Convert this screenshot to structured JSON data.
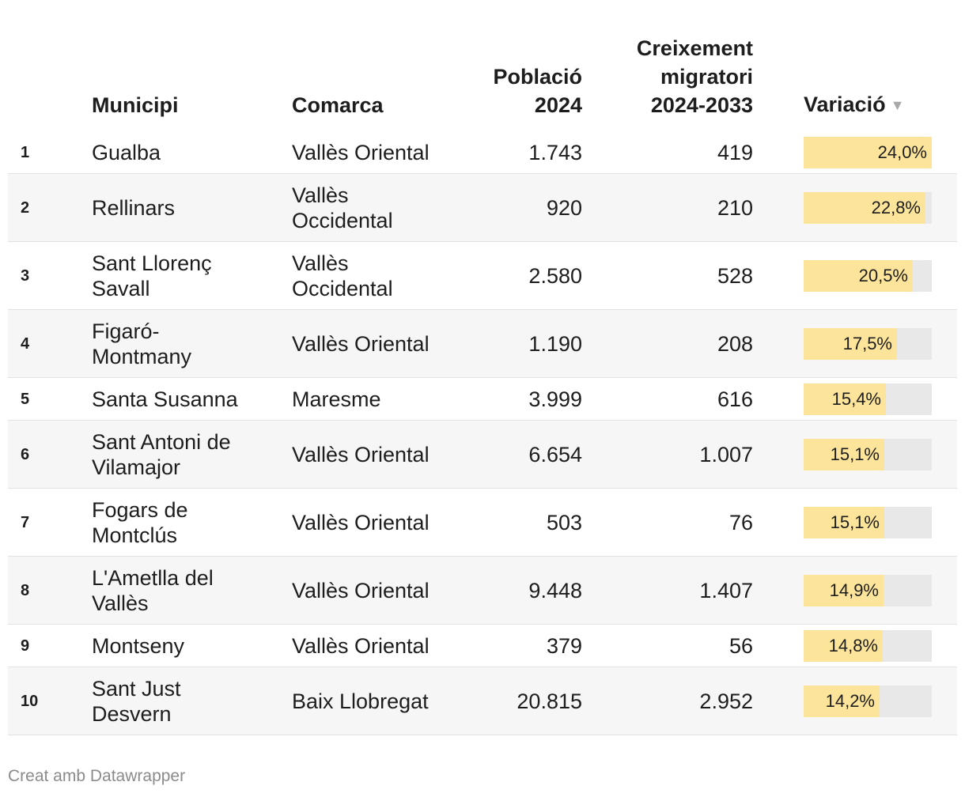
{
  "table": {
    "headers": {
      "municipi": "Municipi",
      "comarca": "Comarca",
      "poblacio_line1": "Població",
      "poblacio_line2": "2024",
      "creix_line1": "Creixement",
      "creix_line2": "migratori",
      "creix_line3": "2024-2033",
      "variacio": "Variació",
      "sort_icon": "sort-down-icon"
    },
    "bar_max": 24.0,
    "colors": {
      "bar_fill": "#fde49b",
      "bar_track": "#e8e8e8",
      "row_alt": "#f6f6f6"
    }
  },
  "rows": [
    {
      "rank": "1",
      "municipi": [
        "Gualba"
      ],
      "comarca": [
        "Vallès Oriental"
      ],
      "poblacio": "1.743",
      "creixement": "419",
      "variacio_label": "24,0%"
    },
    {
      "rank": "2",
      "municipi": [
        "Rellinars"
      ],
      "comarca": [
        "Vallès",
        "Occidental"
      ],
      "poblacio": "920",
      "creixement": "210",
      "variacio_label": "22,8%"
    },
    {
      "rank": "3",
      "municipi": [
        "Sant Llorenç",
        "Savall"
      ],
      "comarca": [
        "Vallès",
        "Occidental"
      ],
      "poblacio": "2.580",
      "creixement": "528",
      "variacio_label": "20,5%"
    },
    {
      "rank": "4",
      "municipi": [
        "Figaró-",
        "Montmany"
      ],
      "comarca": [
        "Vallès Oriental"
      ],
      "poblacio": "1.190",
      "creixement": "208",
      "variacio_label": "17,5%"
    },
    {
      "rank": "5",
      "municipi": [
        "Santa Susanna"
      ],
      "comarca": [
        "Maresme"
      ],
      "poblacio": "3.999",
      "creixement": "616",
      "variacio_label": "15,4%"
    },
    {
      "rank": "6",
      "municipi": [
        "Sant Antoni de",
        "Vilamajor"
      ],
      "comarca": [
        "Vallès Oriental"
      ],
      "poblacio": "6.654",
      "creixement": "1.007",
      "variacio_label": "15,1%"
    },
    {
      "rank": "7",
      "municipi": [
        "Fogars de",
        "Montclús"
      ],
      "comarca": [
        "Vallès Oriental"
      ],
      "poblacio": "503",
      "creixement": "76",
      "variacio_label": "15,1%"
    },
    {
      "rank": "8",
      "municipi": [
        "L'Ametlla del",
        "Vallès"
      ],
      "comarca": [
        "Vallès Oriental"
      ],
      "poblacio": "9.448",
      "creixement": "1.407",
      "variacio_label": "14,9%"
    },
    {
      "rank": "9",
      "municipi": [
        "Montseny"
      ],
      "comarca": [
        "Vallès Oriental"
      ],
      "poblacio": "379",
      "creixement": "56",
      "variacio_label": "14,8%"
    },
    {
      "rank": "10",
      "municipi": [
        "Sant Just",
        "Desvern"
      ],
      "comarca": [
        "Baix Llobregat"
      ],
      "poblacio": "20.815",
      "creixement": "2.952",
      "variacio_label": "14,2%"
    }
  ],
  "chart_data": {
    "type": "table",
    "columns": [
      "Municipi",
      "Comarca",
      "Població 2024",
      "Creixement migratori 2024-2033",
      "Variació"
    ],
    "variacio_values": [
      24.0,
      22.8,
      20.5,
      17.5,
      15.4,
      15.1,
      15.1,
      14.9,
      14.8,
      14.2
    ]
  },
  "footer": {
    "credit": "Creat amb Datawrapper"
  }
}
